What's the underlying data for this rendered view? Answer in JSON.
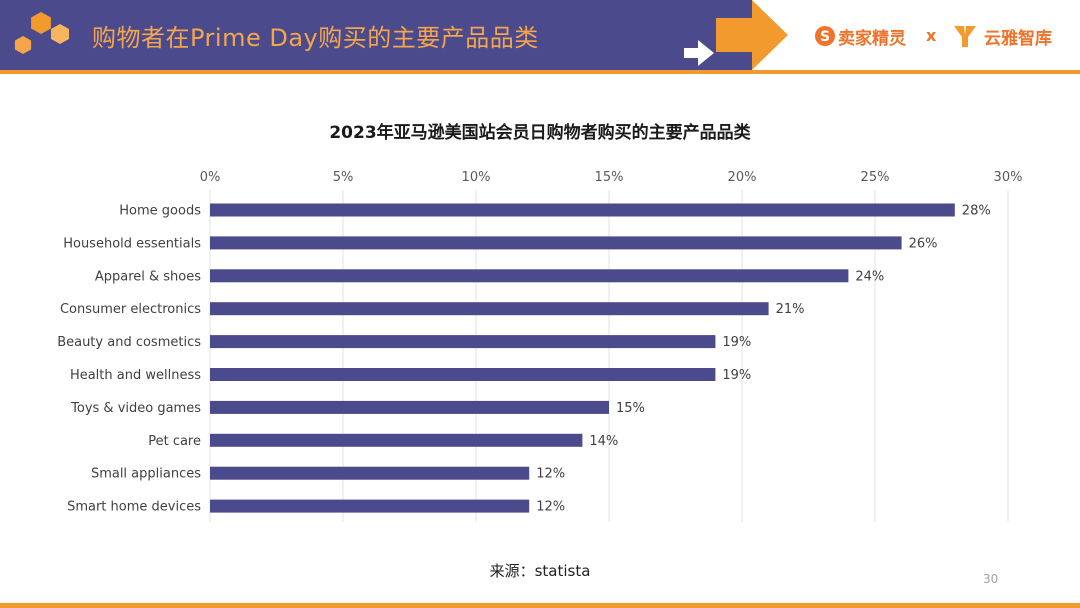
{
  "header": {
    "title": "购物者在Prime Day购买的主要产品品类",
    "brand_left": "卖家精灵",
    "brand_sep": "x",
    "brand_right": "云雅智库"
  },
  "colors": {
    "header_bg": "#4b4a8c",
    "accent": "#f29a2e",
    "bar": "#4b4a8c"
  },
  "chart_data": {
    "type": "bar",
    "orientation": "horizontal",
    "title": "2023年亚马逊美国站会员日购物者购买的主要产品品类",
    "categories": [
      "Home goods",
      "Household essentials",
      "Apparel & shoes",
      "Consumer electronics",
      "Beauty and cosmetics",
      "Health and wellness",
      "Toys & video games",
      "Pet care",
      "Small appliances",
      "Smart home devices"
    ],
    "values": [
      28,
      26,
      24,
      21,
      19,
      19,
      15,
      14,
      12,
      12
    ],
    "value_labels": [
      "28%",
      "26%",
      "24%",
      "21%",
      "19%",
      "19%",
      "15%",
      "14%",
      "12%",
      "12%"
    ],
    "xlim": [
      0,
      30
    ],
    "ticks": [
      0,
      5,
      10,
      15,
      20,
      25,
      30
    ],
    "tick_labels": [
      "0%",
      "5%",
      "10%",
      "15%",
      "20%",
      "25%",
      "30%"
    ],
    "grid": true,
    "axis_position": "top"
  },
  "footer": {
    "source": "来源：statista",
    "page": "30"
  }
}
